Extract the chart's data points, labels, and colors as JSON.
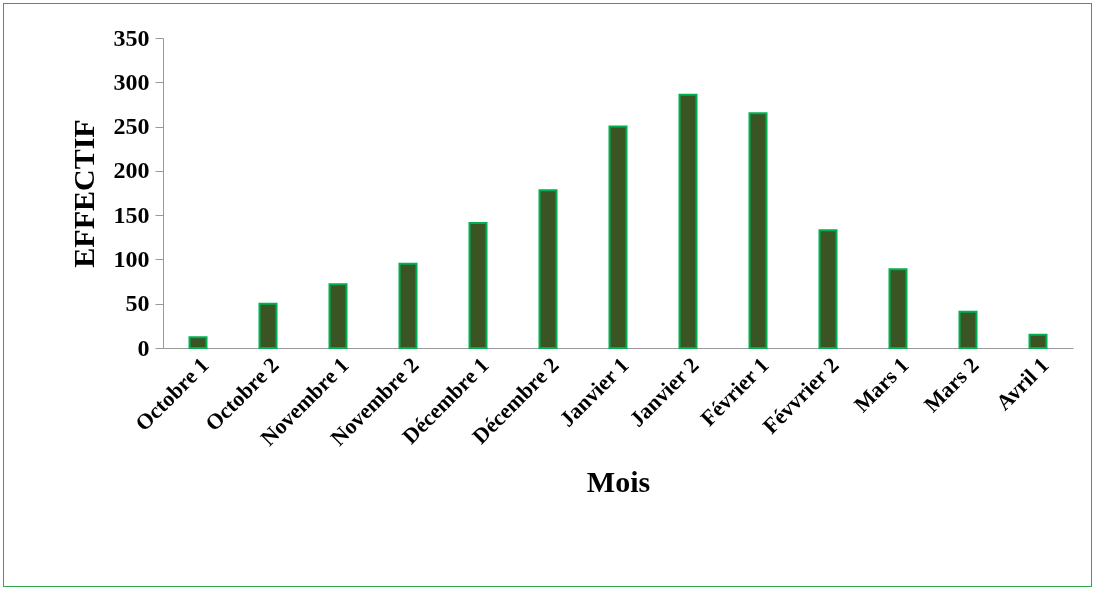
{
  "chart_data": {
    "type": "bar",
    "xlabel": "Mois",
    "ylabel": "EFFECTIF",
    "categories": [
      "Octobre 1",
      "Octobre 2",
      "Novembre 1",
      "Novembre 2",
      "Décembre 1",
      "Décembre 2",
      "Janvier 1",
      "Janvier 2",
      "Février 1",
      "Févvrier 2",
      "Mars 1",
      "Mars 2",
      "Avril 1"
    ],
    "values": [
      12,
      50,
      72,
      95,
      141,
      178,
      250,
      286,
      265,
      133,
      89,
      41,
      15
    ],
    "color": "#3a5424",
    "ylim": [
      0,
      350
    ],
    "yticks": [
      0,
      50,
      100,
      150,
      200,
      250,
      300,
      350
    ],
    "grid": false
  }
}
